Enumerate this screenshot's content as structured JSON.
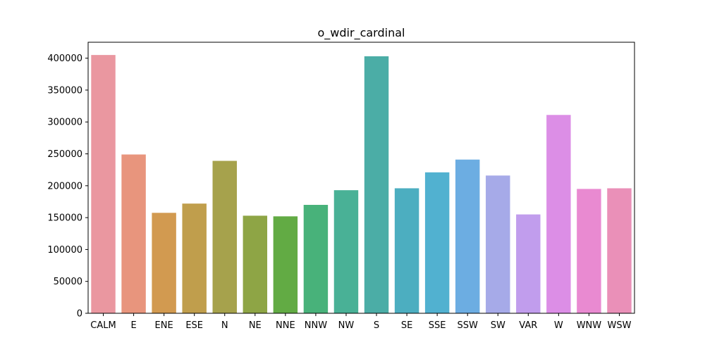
{
  "chart_data": {
    "type": "bar",
    "title": "o_wdir_cardinal",
    "xlabel": "",
    "ylabel": "",
    "categories": [
      "CALM",
      "E",
      "ENE",
      "ESE",
      "N",
      "NE",
      "NNE",
      "NNW",
      "NW",
      "S",
      "SE",
      "SSE",
      "SSW",
      "SW",
      "VAR",
      "W",
      "WNW",
      "WSW"
    ],
    "values": [
      405000,
      249000,
      157500,
      172000,
      239000,
      153000,
      152000,
      170000,
      193000,
      403000,
      196000,
      221000,
      241000,
      216000,
      155000,
      311000,
      195000,
      196000
    ],
    "colors": [
      "#ea97a0",
      "#e8957d",
      "#d29a50",
      "#c09e4c",
      "#a6a24c",
      "#8ea545",
      "#62ab44",
      "#48b27a",
      "#49b196",
      "#4bad a6",
      "#4caec0",
      "#51b1d0",
      "#6cade2",
      "#a6aae8",
      "#c19ded",
      "#dc8ee6",
      "#e98ad1",
      "#ea90b8"
    ],
    "ylim": [
      0,
      425000
    ],
    "yticks": [
      0,
      50000,
      100000,
      150000,
      200000,
      250000,
      300000,
      350000,
      400000
    ],
    "ytick_labels": [
      "0",
      "50000",
      "100000",
      "150000",
      "200000",
      "250000",
      "300000",
      "350000",
      "400000"
    ],
    "grid": false,
    "legend": "none"
  }
}
